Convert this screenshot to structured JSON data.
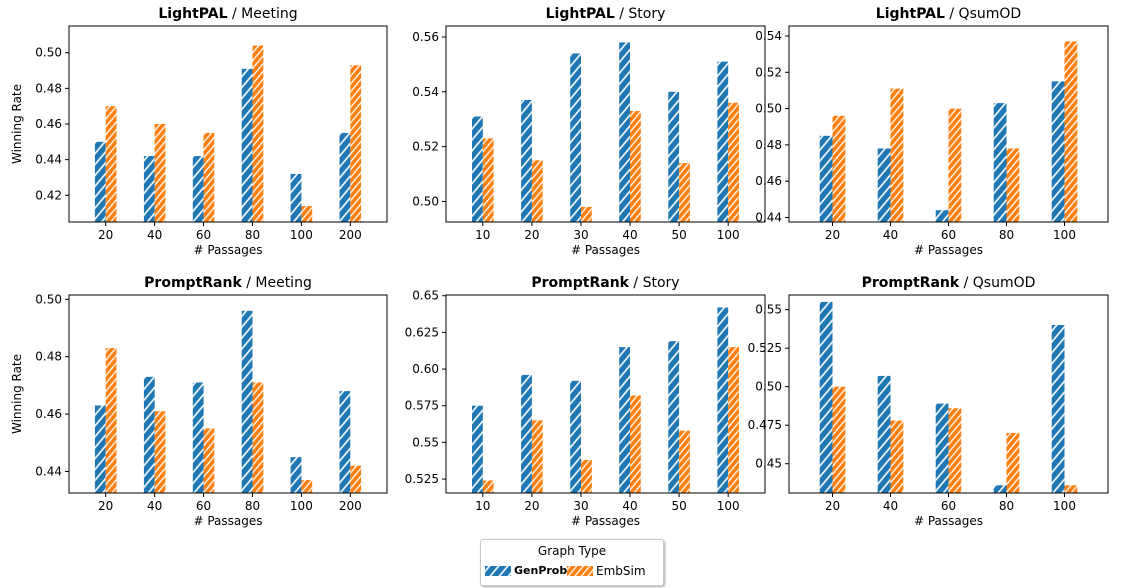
{
  "colors": {
    "GenProb": "#1f77b4",
    "EmbSim": "#ff7f0e"
  },
  "legend": {
    "title": "Graph Type",
    "items": [
      {
        "label": "GenProb",
        "color": "#1f77b4"
      },
      {
        "label": "EmbSim",
        "color": "#ff7f0e"
      }
    ]
  },
  "chart_data": [
    {
      "type": "bar",
      "title_bold": "LightPAL",
      "title_rest": " / Meeting",
      "xlabel": "# Passages",
      "ylabel": "Winning Rate",
      "categories": [
        "20",
        "40",
        "60",
        "80",
        "100",
        "200"
      ],
      "series": [
        {
          "name": "GenProb",
          "values": [
            0.45,
            0.442,
            0.442,
            0.491,
            0.432,
            0.455
          ]
        },
        {
          "name": "EmbSim",
          "values": [
            0.47,
            0.46,
            0.455,
            0.504,
            0.414,
            0.493
          ]
        }
      ],
      "ylim": [
        0.405,
        0.515
      ],
      "yticks": [
        0.42,
        0.44,
        0.46,
        0.48,
        0.5
      ]
    },
    {
      "type": "bar",
      "title_bold": "LightPAL",
      "title_rest": " / Story",
      "xlabel": "# Passages",
      "ylabel": "",
      "categories": [
        "10",
        "20",
        "30",
        "40",
        "50",
        "100"
      ],
      "series": [
        {
          "name": "GenProb",
          "values": [
            0.531,
            0.537,
            0.554,
            0.558,
            0.54,
            0.551
          ]
        },
        {
          "name": "EmbSim",
          "values": [
            0.523,
            0.515,
            0.498,
            0.533,
            0.514,
            0.536
          ]
        }
      ],
      "ylim": [
        0.4925,
        0.564
      ],
      "yticks": [
        0.5,
        0.52,
        0.54,
        0.56
      ]
    },
    {
      "type": "bar",
      "title_bold": "LightPAL",
      "title_rest": " / QsumOD",
      "xlabel": "# Passages",
      "ylabel": "",
      "categories": [
        "20",
        "40",
        "60",
        "80",
        "100"
      ],
      "series": [
        {
          "name": "GenProb",
          "values": [
            0.485,
            0.478,
            0.444,
            0.503,
            0.515
          ]
        },
        {
          "name": "EmbSim",
          "values": [
            0.496,
            0.511,
            0.5,
            0.478,
            0.537
          ]
        }
      ],
      "ylim": [
        0.4375,
        0.5455
      ],
      "yticks": [
        0.44,
        0.46,
        0.48,
        0.5,
        0.52,
        0.54
      ]
    },
    {
      "type": "bar",
      "title_bold": "PromptRank",
      "title_rest": " / Meeting",
      "xlabel": "# Passages",
      "ylabel": "Winning Rate",
      "categories": [
        "20",
        "40",
        "60",
        "80",
        "100",
        "200"
      ],
      "series": [
        {
          "name": "GenProb",
          "values": [
            0.463,
            0.473,
            0.471,
            0.496,
            0.445,
            0.468
          ]
        },
        {
          "name": "EmbSim",
          "values": [
            0.483,
            0.461,
            0.455,
            0.471,
            0.437,
            0.442
          ]
        }
      ],
      "ylim": [
        0.4325,
        0.5015
      ],
      "yticks": [
        0.44,
        0.46,
        0.48,
        0.5
      ]
    },
    {
      "type": "bar",
      "title_bold": "PromptRank",
      "title_rest": " / Story",
      "xlabel": "# Passages",
      "ylabel": "",
      "categories": [
        "10",
        "20",
        "30",
        "40",
        "50",
        "100"
      ],
      "series": [
        {
          "name": "GenProb",
          "values": [
            0.575,
            0.596,
            0.592,
            0.615,
            0.619,
            0.642
          ]
        },
        {
          "name": "EmbSim",
          "values": [
            0.524,
            0.565,
            0.538,
            0.582,
            0.558,
            0.615
          ]
        }
      ],
      "ylim": [
        0.5155,
        0.6505
      ],
      "yticks": [
        0.525,
        0.55,
        0.575,
        0.6,
        0.625,
        0.65
      ]
    },
    {
      "type": "bar",
      "title_bold": "PromptRank",
      "title_rest": " / QsumOD",
      "xlabel": "# Passages",
      "ylabel": "",
      "categories": [
        "20",
        "40",
        "60",
        "80",
        "100"
      ],
      "series": [
        {
          "name": "GenProb",
          "values": [
            0.555,
            0.507,
            0.489,
            0.436,
            0.54
          ]
        },
        {
          "name": "EmbSim",
          "values": [
            0.5,
            0.478,
            0.486,
            0.47,
            0.436
          ]
        }
      ],
      "ylim": [
        0.431,
        0.5595
      ],
      "yticks": [
        0.45,
        0.475,
        0.5,
        0.525,
        0.55
      ]
    }
  ]
}
